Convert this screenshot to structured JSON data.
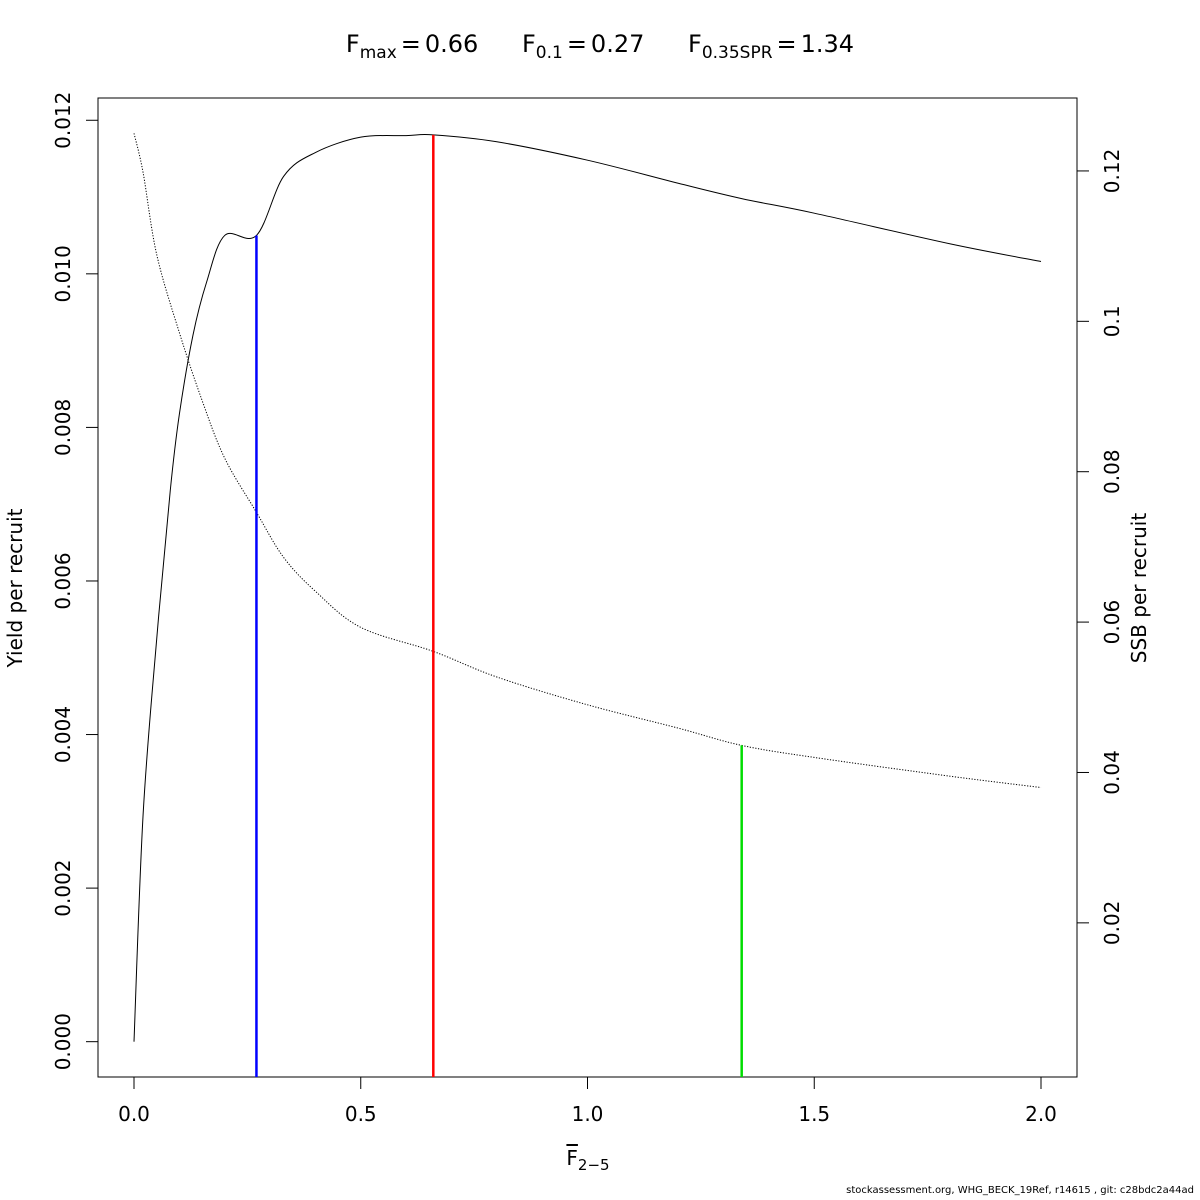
{
  "title": {
    "items": [
      {
        "main": "F",
        "sub": "max",
        "eq": "=",
        "value": "0.66"
      },
      {
        "main": "F",
        "sub": "0.1",
        "eq": "=",
        "value": "0.27"
      },
      {
        "main": "F",
        "sub": "0.35SPR",
        "eq": "=",
        "value": "1.34"
      }
    ]
  },
  "xlabel": {
    "main": "F",
    "sub": "2−5"
  },
  "footer": "stockassessment.org, WHG_BECK_19Ref, r14615 , git: c28bdc2a44ad",
  "chart_data": {
    "type": "line",
    "x_axis": {
      "range": [
        0,
        2
      ],
      "ticks": [
        0.0,
        0.5,
        1.0,
        1.5,
        2.0
      ],
      "tick_labels": [
        "0.0",
        "0.5",
        "1.0",
        "1.5",
        "2.0"
      ]
    },
    "y_left": {
      "label": "Yield per recruit",
      "range": [
        -0.00046,
        0.01229
      ],
      "ticks": [
        0,
        0.002,
        0.004,
        0.006,
        0.008,
        0.01,
        0.012
      ],
      "tick_labels": [
        "0.000",
        "0.002",
        "0.004",
        "0.006",
        "0.008",
        "0.010",
        "0.012"
      ]
    },
    "y_right": {
      "label": "SSB per recruit",
      "range": [
        -0.0005,
        0.1297
      ],
      "ticks": [
        0.02,
        0.04,
        0.06,
        0.08,
        0.1,
        0.12
      ],
      "tick_labels": [
        "0.02",
        "0.04",
        "0.06",
        "0.08",
        "0.1",
        "0.12"
      ]
    },
    "series": [
      {
        "axis": "left",
        "style": "solid",
        "x": [
          0,
          0.02,
          0.05,
          0.08,
          0.1,
          0.13,
          0.16,
          0.2,
          0.27,
          0.33,
          0.4,
          0.5,
          0.6,
          0.66,
          0.8,
          1.0,
          1.2,
          1.34,
          1.5,
          1.8,
          2.0
        ],
        "y": [
          0,
          0.00295,
          0.00524,
          0.00718,
          0.00817,
          0.0092,
          0.00989,
          0.0105,
          0.0105,
          0.01127,
          0.01158,
          0.01178,
          0.0118,
          0.01181,
          0.01172,
          0.01148,
          0.01118,
          0.01098,
          0.01079,
          0.01039,
          0.01016
        ]
      },
      {
        "axis": "right",
        "style": "dotted",
        "x": [
          0,
          0.02,
          0.05,
          0.1,
          0.15,
          0.2,
          0.27,
          0.33,
          0.4,
          0.5,
          0.66,
          0.8,
          1.0,
          1.2,
          1.34,
          1.5,
          1.8,
          2.0
        ],
        "y": [
          0.125,
          0.1198,
          0.1089,
          0.0985,
          0.0895,
          0.0818,
          0.0746,
          0.0686,
          0.0641,
          0.0593,
          0.0561,
          0.0527,
          0.049,
          0.0459,
          0.0436,
          0.042,
          0.0395,
          0.038
        ]
      }
    ],
    "reference_lines": [
      {
        "name": "F0.1",
        "x": 0.27,
        "top_axis": "left",
        "top": 0.0105,
        "color": "#0000ff"
      },
      {
        "name": "Fmax",
        "x": 0.66,
        "top_axis": "left",
        "top": 0.01181,
        "color": "#ff0000"
      },
      {
        "name": "F0.35SPR",
        "x": 1.34,
        "top_axis": "right",
        "top": 0.0436,
        "color": "#00dd00"
      }
    ]
  }
}
